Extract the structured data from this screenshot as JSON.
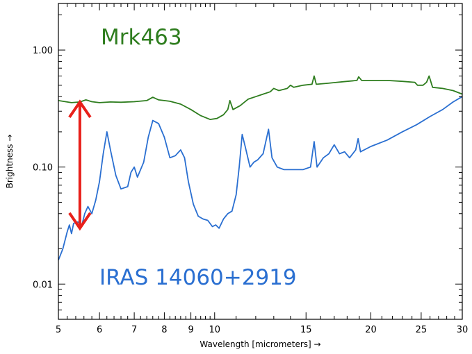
{
  "chart_data": {
    "type": "line",
    "xlabel": "Wavelength [micrometers] →",
    "ylabel": "Brightness →",
    "xscale": "log",
    "yscale": "log",
    "xlim": [
      5,
      30
    ],
    "ylim": [
      0.005,
      2.5
    ],
    "grid": false,
    "x_ticks": [
      5,
      6,
      7,
      8,
      9,
      10,
      15,
      20,
      25,
      30
    ],
    "x_tick_labels": [
      "5",
      "6",
      "7",
      "8",
      "9",
      "10",
      "15",
      "20",
      "25",
      "30"
    ],
    "y_ticks": [
      0.01,
      0.1,
      1.0
    ],
    "y_tick_labels": [
      "0.01",
      "0.10",
      "1.00"
    ],
    "annotations": [
      {
        "text": "Mrk463",
        "color": "#2e7d1e",
        "series": 0
      },
      {
        "text": "IRAS 14060+2919",
        "color": "#2a6fd1",
        "series": 1
      }
    ],
    "arrow": {
      "x": 5.5,
      "y_top": 0.36,
      "y_bottom": 0.03,
      "color": "#e8201a",
      "double_headed": true
    },
    "series": [
      {
        "color": "#2e7d1e",
        "points": [
          [
            5.0,
            0.37
          ],
          [
            5.3,
            0.355
          ],
          [
            5.5,
            0.36
          ],
          [
            5.65,
            0.375
          ],
          [
            5.8,
            0.362
          ],
          [
            6.0,
            0.355
          ],
          [
            6.3,
            0.36
          ],
          [
            6.6,
            0.358
          ],
          [
            7.0,
            0.362
          ],
          [
            7.4,
            0.37
          ],
          [
            7.6,
            0.395
          ],
          [
            7.8,
            0.375
          ],
          [
            8.2,
            0.365
          ],
          [
            8.6,
            0.345
          ],
          [
            9.0,
            0.31
          ],
          [
            9.4,
            0.275
          ],
          [
            9.8,
            0.255
          ],
          [
            10.1,
            0.26
          ],
          [
            10.4,
            0.28
          ],
          [
            10.6,
            0.31
          ],
          [
            10.7,
            0.37
          ],
          [
            10.85,
            0.31
          ],
          [
            11.2,
            0.335
          ],
          [
            11.6,
            0.38
          ],
          [
            12.0,
            0.4
          ],
          [
            12.4,
            0.42
          ],
          [
            12.8,
            0.44
          ],
          [
            13.0,
            0.47
          ],
          [
            13.3,
            0.45
          ],
          [
            13.8,
            0.47
          ],
          [
            14.0,
            0.5
          ],
          [
            14.2,
            0.48
          ],
          [
            14.8,
            0.5
          ],
          [
            15.4,
            0.51
          ],
          [
            15.55,
            0.6
          ],
          [
            15.7,
            0.51
          ],
          [
            16.5,
            0.52
          ],
          [
            17.2,
            0.53
          ],
          [
            18.0,
            0.54
          ],
          [
            18.8,
            0.55
          ],
          [
            18.95,
            0.59
          ],
          [
            19.2,
            0.55
          ],
          [
            20.0,
            0.55
          ],
          [
            21.5,
            0.55
          ],
          [
            23.0,
            0.54
          ],
          [
            24.3,
            0.53
          ],
          [
            24.6,
            0.5
          ],
          [
            25.2,
            0.5
          ],
          [
            25.6,
            0.53
          ],
          [
            25.9,
            0.6
          ],
          [
            26.3,
            0.48
          ],
          [
            27.5,
            0.47
          ],
          [
            28.8,
            0.45
          ],
          [
            30.0,
            0.42
          ]
        ]
      },
      {
        "color": "#2a6fd1",
        "points": [
          [
            5.0,
            0.016
          ],
          [
            5.1,
            0.02
          ],
          [
            5.2,
            0.028
          ],
          [
            5.25,
            0.032
          ],
          [
            5.3,
            0.027
          ],
          [
            5.35,
            0.033
          ],
          [
            5.45,
            0.034
          ],
          [
            5.55,
            0.032
          ],
          [
            5.62,
            0.04
          ],
          [
            5.7,
            0.046
          ],
          [
            5.8,
            0.04
          ],
          [
            5.9,
            0.052
          ],
          [
            6.0,
            0.075
          ],
          [
            6.1,
            0.13
          ],
          [
            6.2,
            0.2
          ],
          [
            6.3,
            0.14
          ],
          [
            6.45,
            0.085
          ],
          [
            6.6,
            0.065
          ],
          [
            6.8,
            0.068
          ],
          [
            6.9,
            0.09
          ],
          [
            7.0,
            0.1
          ],
          [
            7.1,
            0.082
          ],
          [
            7.3,
            0.11
          ],
          [
            7.45,
            0.18
          ],
          [
            7.6,
            0.25
          ],
          [
            7.8,
            0.235
          ],
          [
            8.0,
            0.18
          ],
          [
            8.2,
            0.12
          ],
          [
            8.4,
            0.125
          ],
          [
            8.6,
            0.14
          ],
          [
            8.75,
            0.12
          ],
          [
            8.9,
            0.075
          ],
          [
            9.1,
            0.048
          ],
          [
            9.3,
            0.038
          ],
          [
            9.5,
            0.036
          ],
          [
            9.7,
            0.035
          ],
          [
            9.9,
            0.031
          ],
          [
            10.05,
            0.032
          ],
          [
            10.2,
            0.03
          ],
          [
            10.4,
            0.036
          ],
          [
            10.6,
            0.04
          ],
          [
            10.8,
            0.042
          ],
          [
            11.0,
            0.058
          ],
          [
            11.15,
            0.1
          ],
          [
            11.3,
            0.19
          ],
          [
            11.45,
            0.15
          ],
          [
            11.7,
            0.1
          ],
          [
            11.9,
            0.11
          ],
          [
            12.1,
            0.115
          ],
          [
            12.4,
            0.13
          ],
          [
            12.7,
            0.21
          ],
          [
            12.9,
            0.12
          ],
          [
            13.2,
            0.1
          ],
          [
            13.6,
            0.095
          ],
          [
            14.2,
            0.095
          ],
          [
            14.8,
            0.095
          ],
          [
            15.3,
            0.1
          ],
          [
            15.55,
            0.165
          ],
          [
            15.75,
            0.1
          ],
          [
            16.2,
            0.12
          ],
          [
            16.6,
            0.13
          ],
          [
            17.0,
            0.155
          ],
          [
            17.4,
            0.13
          ],
          [
            17.8,
            0.135
          ],
          [
            18.2,
            0.12
          ],
          [
            18.7,
            0.14
          ],
          [
            18.9,
            0.175
          ],
          [
            19.1,
            0.135
          ],
          [
            20.0,
            0.15
          ],
          [
            21.5,
            0.17
          ],
          [
            23.0,
            0.2
          ],
          [
            24.5,
            0.23
          ],
          [
            26.0,
            0.27
          ],
          [
            27.5,
            0.31
          ],
          [
            28.8,
            0.36
          ],
          [
            30.0,
            0.4
          ]
        ]
      }
    ]
  }
}
